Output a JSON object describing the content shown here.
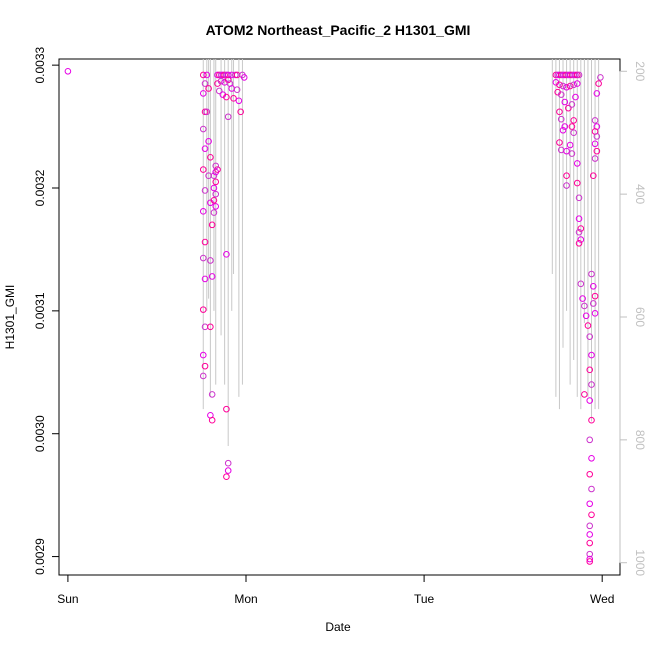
{
  "chart_data": {
    "type": "scatter",
    "title": "ATOM2 Northeast_Pacific_2 H1301_GMI",
    "xlabel": "Date",
    "ylabel": "H1301_GMI",
    "x_ticks": [
      "Sun",
      "Mon",
      "Tue",
      "Wed"
    ],
    "xlim": [
      -0.05,
      3.1
    ],
    "ylim": [
      0.002885,
      0.003305
    ],
    "y_ticks": [
      0.0029,
      0.003,
      0.0031,
      0.0032,
      0.0033
    ],
    "y_tick_labels": [
      "0.0029",
      "0.0030",
      "0.0031",
      "0.0032",
      "0.0033"
    ],
    "secondary_axis": {
      "side": "right",
      "lim": [
        1020,
        180
      ],
      "ticks": [
        200,
        400,
        600,
        800,
        1000
      ],
      "tick_labels": [
        "200",
        "400",
        "600",
        "800",
        "1000"
      ],
      "color": "#c0c0c0"
    },
    "point_colors": [
      "#e600e6",
      "#ff0099",
      "#cc33cc"
    ],
    "line_color": "#c8c8c8",
    "grid": false,
    "series": [
      {
        "values": [
          [
            0.0,
            0.003295
          ],
          [
            0.76,
            0.003292
          ],
          [
            0.77,
            0.003285
          ],
          [
            0.76,
            0.003277
          ],
          [
            0.77,
            0.003262
          ],
          [
            0.76,
            0.003248
          ],
          [
            0.77,
            0.003232
          ],
          [
            0.76,
            0.003215
          ],
          [
            0.77,
            0.003198
          ],
          [
            0.76,
            0.003181
          ],
          [
            0.77,
            0.003156
          ],
          [
            0.76,
            0.003143
          ],
          [
            0.77,
            0.003126
          ],
          [
            0.76,
            0.003101
          ],
          [
            0.77,
            0.003087
          ],
          [
            0.76,
            0.003064
          ],
          [
            0.77,
            0.003055
          ],
          [
            0.76,
            0.003047
          ],
          [
            0.78,
            0.003292
          ],
          [
            0.79,
            0.003281
          ],
          [
            0.78,
            0.003262
          ],
          [
            0.79,
            0.003238
          ],
          [
            0.8,
            0.003225
          ],
          [
            0.79,
            0.00321
          ],
          [
            0.8,
            0.003188
          ],
          [
            0.81,
            0.00317
          ],
          [
            0.8,
            0.003141
          ],
          [
            0.81,
            0.003128
          ],
          [
            0.8,
            0.003087
          ],
          [
            0.81,
            0.003032
          ],
          [
            0.8,
            0.003015
          ],
          [
            0.81,
            0.003011
          ],
          [
            0.82,
            0.00318
          ],
          [
            0.83,
            0.003185
          ],
          [
            0.82,
            0.00319
          ],
          [
            0.83,
            0.003195
          ],
          [
            0.82,
            0.0032
          ],
          [
            0.83,
            0.003205
          ],
          [
            0.82,
            0.00321
          ],
          [
            0.83,
            0.003213
          ],
          [
            0.84,
            0.003215
          ],
          [
            0.83,
            0.003218
          ],
          [
            0.84,
            0.003292
          ],
          [
            0.85,
            0.003292
          ],
          [
            0.86,
            0.003292
          ],
          [
            0.87,
            0.003292
          ],
          [
            0.88,
            0.003292
          ],
          [
            0.89,
            0.003292
          ],
          [
            0.9,
            0.003292
          ],
          [
            0.84,
            0.003285
          ],
          [
            0.86,
            0.003287
          ],
          [
            0.88,
            0.003286
          ],
          [
            0.9,
            0.003288
          ],
          [
            0.85,
            0.003279
          ],
          [
            0.87,
            0.003276
          ],
          [
            0.89,
            0.003274
          ],
          [
            0.91,
            0.003285
          ],
          [
            0.92,
            0.003281
          ],
          [
            0.93,
            0.003273
          ],
          [
            0.94,
            0.003292
          ],
          [
            0.92,
            0.003292
          ],
          [
            0.95,
            0.003292
          ],
          [
            0.9,
            0.003258
          ],
          [
            0.89,
            0.003146
          ],
          [
            0.89,
            0.00302
          ],
          [
            0.9,
            0.002976
          ],
          [
            0.9,
            0.00297
          ],
          [
            0.89,
            0.002965
          ],
          [
            0.95,
            0.00328
          ],
          [
            0.96,
            0.003271
          ],
          [
            0.97,
            0.003262
          ],
          [
            0.98,
            0.003292
          ],
          [
            0.99,
            0.00329
          ],
          [
            2.74,
            0.003292
          ],
          [
            2.75,
            0.003292
          ],
          [
            2.76,
            0.003292
          ],
          [
            2.77,
            0.003292
          ],
          [
            2.78,
            0.003292
          ],
          [
            2.79,
            0.003292
          ],
          [
            2.8,
            0.003292
          ],
          [
            2.81,
            0.003292
          ],
          [
            2.82,
            0.003292
          ],
          [
            2.83,
            0.003292
          ],
          [
            2.84,
            0.003292
          ],
          [
            2.85,
            0.003292
          ],
          [
            2.86,
            0.003292
          ],
          [
            2.87,
            0.003292
          ],
          [
            2.74,
            0.003286
          ],
          [
            2.76,
            0.003284
          ],
          [
            2.78,
            0.003283
          ],
          [
            2.8,
            0.003282
          ],
          [
            2.82,
            0.003283
          ],
          [
            2.84,
            0.003284
          ],
          [
            2.86,
            0.003285
          ],
          [
            2.75,
            0.003278
          ],
          [
            2.77,
            0.003276
          ],
          [
            2.79,
            0.00327
          ],
          [
            2.81,
            0.003265
          ],
          [
            2.83,
            0.003268
          ],
          [
            2.85,
            0.003274
          ],
          [
            2.76,
            0.003262
          ],
          [
            2.77,
            0.003256
          ],
          [
            2.78,
            0.003247
          ],
          [
            2.76,
            0.003237
          ],
          [
            2.77,
            0.003231
          ],
          [
            2.79,
            0.00325
          ],
          [
            2.8,
            0.00321
          ],
          [
            2.8,
            0.003202
          ],
          [
            2.8,
            0.00323
          ],
          [
            2.83,
            0.00325
          ],
          [
            2.84,
            0.003245
          ],
          [
            2.82,
            0.003235
          ],
          [
            2.84,
            0.003255
          ],
          [
            2.83,
            0.003228
          ],
          [
            2.86,
            0.00322
          ],
          [
            2.86,
            0.003204
          ],
          [
            2.87,
            0.003192
          ],
          [
            2.87,
            0.003175
          ],
          [
            2.88,
            0.003167
          ],
          [
            2.87,
            0.003164
          ],
          [
            2.88,
            0.003158
          ],
          [
            2.87,
            0.003155
          ],
          [
            2.88,
            0.003122
          ],
          [
            2.89,
            0.00311
          ],
          [
            2.9,
            0.003032
          ],
          [
            2.9,
            0.003104
          ],
          [
            2.91,
            0.003096
          ],
          [
            2.92,
            0.003088
          ],
          [
            2.93,
            0.003079
          ],
          [
            2.94,
            0.003064
          ],
          [
            2.93,
            0.003052
          ],
          [
            2.94,
            0.00304
          ],
          [
            2.93,
            0.003027
          ],
          [
            2.94,
            0.003011
          ],
          [
            2.93,
            0.002995
          ],
          [
            2.94,
            0.00298
          ],
          [
            2.93,
            0.002967
          ],
          [
            2.94,
            0.002955
          ],
          [
            2.93,
            0.002943
          ],
          [
            2.94,
            0.002934
          ],
          [
            2.93,
            0.002925
          ],
          [
            2.93,
            0.002918
          ],
          [
            2.93,
            0.002911
          ],
          [
            2.93,
            0.002902
          ],
          [
            2.93,
            0.002898
          ],
          [
            2.93,
            0.002896
          ],
          [
            2.94,
            0.00313
          ],
          [
            2.95,
            0.00312
          ],
          [
            2.96,
            0.003112
          ],
          [
            2.95,
            0.003106
          ],
          [
            2.96,
            0.003098
          ],
          [
            2.95,
            0.00321
          ],
          [
            2.96,
            0.003255
          ],
          [
            2.97,
            0.00325
          ],
          [
            2.96,
            0.003246
          ],
          [
            2.97,
            0.003242
          ],
          [
            2.96,
            0.003236
          ],
          [
            2.97,
            0.00323
          ],
          [
            2.96,
            0.003224
          ],
          [
            2.97,
            0.003277
          ],
          [
            2.98,
            0.003285
          ],
          [
            2.99,
            0.00329
          ]
        ]
      }
    ],
    "line_segments": [
      [
        0.74,
        0.00332,
        0.74,
        0.00338
      ],
      [
        0.76,
        0.00332,
        0.76,
        0.00302
      ],
      [
        0.78,
        0.00332,
        0.78,
        0.0031
      ],
      [
        0.79,
        0.00332,
        0.79,
        0.00311
      ],
      [
        0.8,
        0.00332,
        0.8,
        0.00303
      ],
      [
        0.82,
        0.00332,
        0.82,
        0.0031
      ],
      [
        0.83,
        0.00332,
        0.83,
        0.00304
      ],
      [
        0.86,
        0.00332,
        0.86,
        0.00308
      ],
      [
        0.88,
        0.00332,
        0.88,
        0.00304
      ],
      [
        0.9,
        0.00332,
        0.9,
        0.00299
      ],
      [
        0.92,
        0.00332,
        0.92,
        0.0031
      ],
      [
        0.93,
        0.00332,
        0.93,
        0.00313
      ],
      [
        0.96,
        0.00332,
        0.96,
        0.00303
      ],
      [
        0.98,
        0.00332,
        0.98,
        0.00304
      ],
      [
        2.72,
        0.00332,
        2.72,
        0.00313
      ],
      [
        2.74,
        0.00332,
        2.74,
        0.00303
      ],
      [
        2.76,
        0.00332,
        2.76,
        0.00302
      ],
      [
        2.78,
        0.00332,
        2.78,
        0.00307
      ],
      [
        2.8,
        0.00332,
        2.8,
        0.0031
      ],
      [
        2.82,
        0.00332,
        2.82,
        0.00304
      ],
      [
        2.84,
        0.00332,
        2.84,
        0.00306
      ],
      [
        2.86,
        0.00332,
        2.86,
        0.00303
      ],
      [
        2.88,
        0.00332,
        2.88,
        0.00302
      ],
      [
        2.9,
        0.00332,
        2.9,
        0.00309
      ],
      [
        2.92,
        0.00332,
        2.92,
        0.00303
      ],
      [
        2.94,
        0.00332,
        2.94,
        0.00301
      ],
      [
        2.96,
        0.00332,
        2.96,
        0.00302
      ],
      [
        2.98,
        0.00332,
        2.98,
        0.00302
      ]
    ]
  }
}
